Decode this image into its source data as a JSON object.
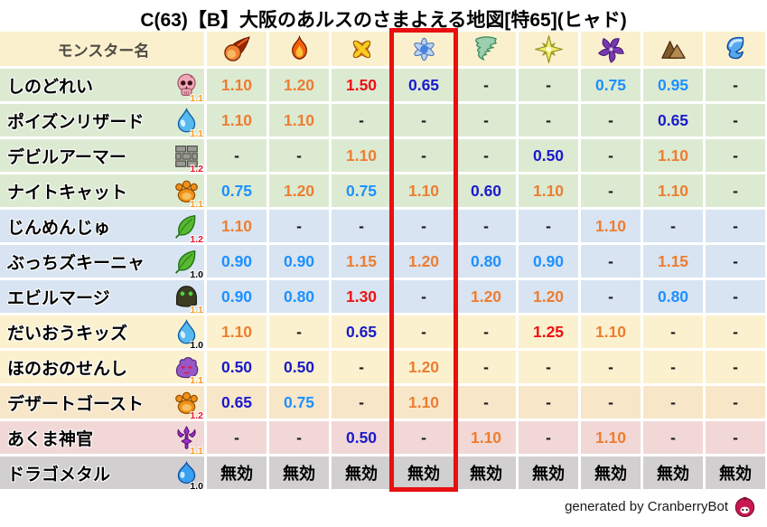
{
  "title": "C(63)【B】大阪のあルスのさまよえる地図[特65](ヒャド)",
  "footer": {
    "credit": "generated by CranberryBot"
  },
  "colors": {
    "value_weak_orange": "#ed7d31",
    "value_weak_red": "#ee1111",
    "value_resist_light_blue": "#1e90ff",
    "value_resist_dark_blue": "#1a1acc",
    "highlight_box_red": "#e81010",
    "header_bg": "#fbf0cd",
    "header_text": "#4d4c44",
    "row_green": "#dcead2",
    "row_blue": "#d8e4f1",
    "row_cream": "#fbf1ce",
    "row_tan": "#f8e6c9",
    "row_pink": "#f1d8d6",
    "row_gray": "#d1cfcf"
  },
  "chart_data": {
    "type": "table",
    "title": "C(63)【B】大阪のあルスのさまよえる地図[特65](ヒャド)",
    "name_header": "モンスター名",
    "element_columns": [
      "fireball",
      "flame",
      "explosion",
      "ice",
      "wind",
      "light",
      "dark",
      "earth",
      "wave"
    ],
    "highlighted_element": "ice",
    "highlighted_column_index": 3,
    "immune_label": "無効",
    "rows": [
      {
        "name": "しのどれい",
        "icon": "skull",
        "multiplier": "1.1",
        "group": "green",
        "values": [
          "1.10",
          "1.20",
          "1.50",
          "0.65",
          "-",
          "-",
          "0.75",
          "0.95",
          "-"
        ]
      },
      {
        "name": "ポイズンリザード",
        "icon": "waterdrop",
        "multiplier": "1.1",
        "group": "green",
        "values": [
          "1.10",
          "1.10",
          "-",
          "-",
          "-",
          "-",
          "-",
          "0.65",
          "-"
        ]
      },
      {
        "name": "デビルアーマー",
        "icon": "brick",
        "multiplier": "1.2",
        "group": "green",
        "values": [
          "-",
          "-",
          "1.10",
          "-",
          "-",
          "0.50",
          "-",
          "1.10",
          "-"
        ]
      },
      {
        "name": "ナイトキャット",
        "icon": "paw",
        "multiplier": "1.1",
        "group": "green",
        "values": [
          "0.75",
          "1.20",
          "0.75",
          "1.10",
          "0.60",
          "1.10",
          "-",
          "1.10",
          "-"
        ]
      },
      {
        "name": "じんめんじゅ",
        "icon": "leaf",
        "multiplier": "1.2",
        "group": "blue",
        "values": [
          "1.10",
          "-",
          "-",
          "-",
          "-",
          "-",
          "1.10",
          "-",
          "-"
        ]
      },
      {
        "name": "ぶっちズキーニャ",
        "icon": "leaf",
        "multiplier": "1.0",
        "group": "blue",
        "values": [
          "0.90",
          "0.90",
          "1.15",
          "1.20",
          "0.80",
          "0.90",
          "-",
          "1.15",
          "-"
        ]
      },
      {
        "name": "エビルマージ",
        "icon": "hood",
        "multiplier": "1.1",
        "group": "blue",
        "values": [
          "0.90",
          "0.80",
          "1.30",
          "-",
          "1.20",
          "1.20",
          "-",
          "0.80",
          "-"
        ]
      },
      {
        "name": "だいおうキッズ",
        "icon": "waterdrop",
        "multiplier": "1.0",
        "group": "cream",
        "values": [
          "1.10",
          "-",
          "0.65",
          "-",
          "-",
          "1.25",
          "1.10",
          "-",
          "-"
        ]
      },
      {
        "name": "ほのおのせんし",
        "icon": "imp",
        "multiplier": "1.1",
        "group": "cream",
        "values": [
          "0.50",
          "0.50",
          "-",
          "1.20",
          "-",
          "-",
          "-",
          "-",
          "-"
        ]
      },
      {
        "name": "デザートゴースト",
        "icon": "paw",
        "multiplier": "1.2",
        "group": "tan",
        "values": [
          "0.65",
          "0.75",
          "-",
          "1.10",
          "-",
          "-",
          "-",
          "-",
          "-"
        ]
      },
      {
        "name": "あくま神官",
        "icon": "trident",
        "multiplier": "1.1",
        "group": "pink",
        "values": [
          "-",
          "-",
          "0.50",
          "-",
          "1.10",
          "-",
          "1.10",
          "-",
          "-"
        ]
      },
      {
        "name": "ドラゴメタル",
        "icon": "slime",
        "multiplier": "1.0",
        "group": "gray",
        "values": [
          "無効",
          "無効",
          "無効",
          "無効",
          "無効",
          "無効",
          "無効",
          "無効",
          "無効"
        ]
      }
    ]
  }
}
